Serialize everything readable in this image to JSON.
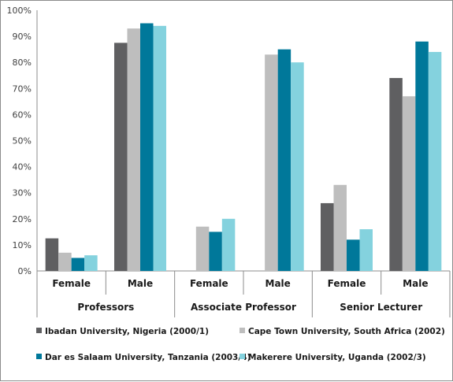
{
  "chart_data": {
    "type": "bar",
    "ylim": [
      0,
      100
    ],
    "y_ticks": [
      "0%",
      "10%",
      "20%",
      "30%",
      "40%",
      "50%",
      "60%",
      "70%",
      "80%",
      "90%",
      "100%"
    ],
    "grid": false,
    "legend_position": "bottom",
    "groups": [
      {
        "label": "Professors",
        "categories": [
          "Female",
          "Male"
        ]
      },
      {
        "label": "Associate Professor",
        "categories": [
          "Female",
          "Male"
        ]
      },
      {
        "label": "Senior Lecturer",
        "categories": [
          "Female",
          "Male"
        ]
      }
    ],
    "categories": [
      "Professors - Female",
      "Professors - Male",
      "Associate Professor - Female",
      "Associate Professor - Male",
      "Senior Lecturer - Female",
      "Senior Lecturer - Male"
    ],
    "series": [
      {
        "name": "Ibadan University, Nigeria (2000/1)",
        "color": "#5f5f61",
        "values": [
          12.5,
          87.5,
          0,
          0,
          26,
          74
        ]
      },
      {
        "name": "Cape Town University, South Africa (2002)",
        "color": "#bebebe",
        "values": [
          7,
          93,
          17,
          83,
          33,
          67
        ]
      },
      {
        "name": "Dar es Salaam University, Tanzania (2003/4)",
        "color": "#00789a",
        "values": [
          5,
          95,
          15,
          85,
          12,
          88
        ]
      },
      {
        "name": "Makerere University, Uganda (2002/3)",
        "color": "#84d2de",
        "values": [
          6,
          94,
          20,
          80,
          16,
          84
        ]
      }
    ]
  }
}
